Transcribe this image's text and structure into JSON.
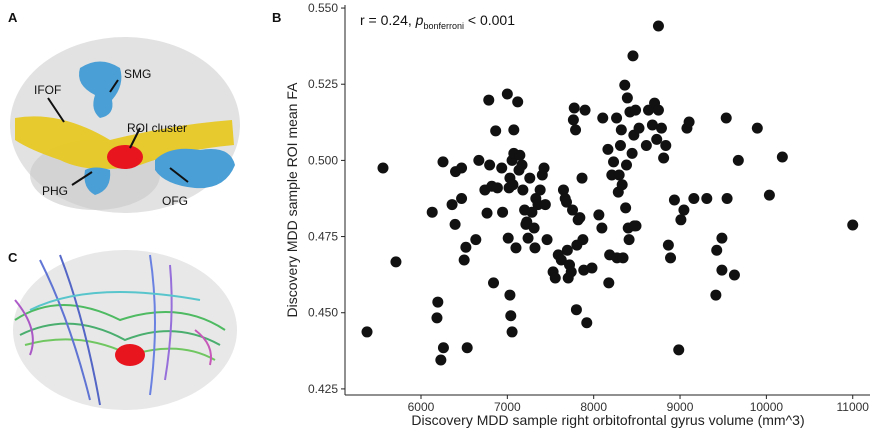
{
  "panels": {
    "A": {
      "label": "A",
      "annotations": [
        "SMG",
        "IFOF",
        "ROI cluster",
        "PHG",
        "OFG"
      ]
    },
    "C": {
      "label": "C"
    }
  },
  "chart_data": {
    "type": "scatter",
    "panel": "B",
    "annotation": [
      "r = 0.24, ",
      "p",
      "bonferroni",
      " < 0.001"
    ],
    "xlabel": "Discovery MDD sample right orbitofrontal gyrus volume (mm^3)",
    "ylabel": "Discovery MDD sample ROI mean FA",
    "color": "#111111",
    "xlim": [
      5120,
      11200
    ],
    "ylim": [
      0.423,
      0.551
    ],
    "xticks": [
      6000,
      7000,
      8000,
      9000,
      10000,
      11000
    ],
    "yticks": [
      0.425,
      {
        "value": 0.45,
        "label": "0.450"
      },
      0.475,
      {
        "value": 0.5,
        "label": "0.500"
      },
      0.525,
      {
        "value": 0.55,
        "label": "0.550"
      }
    ],
    "x": [
      5560,
      5375,
      5710,
      6130,
      6195,
      6260,
      6185,
      6230,
      6255,
      6360,
      6395,
      6400,
      6470,
      6470,
      6500,
      6520,
      6535,
      6635,
      6670,
      6740,
      6765,
      6785,
      6795,
      6820,
      6840,
      6865,
      6885,
      6935,
      6945,
      7000,
      7010,
      7020,
      7030,
      7030,
      7040,
      7055,
      7065,
      7055,
      7075,
      7075,
      7100,
      7120,
      7135,
      7145,
      7170,
      7180,
      7200,
      7215,
      7225,
      7240,
      7260,
      7285,
      7310,
      7320,
      7330,
      7355,
      7380,
      7405,
      7425,
      7440,
      7460,
      7530,
      7555,
      7590,
      7625,
      7650,
      7670,
      7685,
      7695,
      7705,
      7720,
      7740,
      7755,
      7765,
      7775,
      7790,
      7800,
      7805,
      7820,
      7840,
      7865,
      7875,
      7885,
      7900,
      7920,
      7980,
      8060,
      8095,
      8105,
      8165,
      8175,
      8185,
      8210,
      8230,
      8265,
      8270,
      8285,
      8295,
      8310,
      8320,
      8330,
      8340,
      8360,
      8370,
      8380,
      8390,
      8400,
      8410,
      8420,
      8445,
      8455,
      8465,
      8470,
      8485,
      8490,
      8525,
      8610,
      8635,
      8680,
      8705,
      8730,
      8750,
      8750,
      8785,
      8810,
      8835,
      8865,
      8890,
      8935,
      8985,
      9010,
      9045,
      9080,
      9105,
      9160,
      9310,
      9415,
      9425,
      9485,
      9485,
      9535,
      9545,
      9630,
      9675,
      9895,
      10035,
      10185,
      11000
    ],
    "y": [
      0.4975,
      0.4437,
      0.4667,
      0.483,
      0.4535,
      0.4385,
      0.4483,
      0.4345,
      0.4995,
      0.4855,
      0.479,
      0.4963,
      0.4975,
      0.4875,
      0.4673,
      0.4715,
      0.4385,
      0.474,
      0.5,
      0.4903,
      0.4827,
      0.5198,
      0.4985,
      0.4915,
      0.4598,
      0.5097,
      0.491,
      0.4975,
      0.483,
      0.5218,
      0.4745,
      0.491,
      0.4942,
      0.4558,
      0.449,
      0.4437,
      0.492,
      0.5,
      0.51,
      0.5023,
      0.4713,
      0.5192,
      0.4968,
      0.5017,
      0.4985,
      0.4903,
      0.4837,
      0.479,
      0.4798,
      0.4745,
      0.4942,
      0.483,
      0.4778,
      0.4713,
      0.4875,
      0.4855,
      0.4903,
      0.4952,
      0.4975,
      0.4855,
      0.474,
      0.4634,
      0.4614,
      0.469,
      0.4673,
      0.4903,
      0.4875,
      0.4863,
      0.4705,
      0.4614,
      0.4657,
      0.4634,
      0.4837,
      0.5133,
      0.5172,
      0.51,
      0.451,
      0.4722,
      0.4805,
      0.4812,
      0.4942,
      0.474,
      0.464,
      0.5165,
      0.4467,
      0.4647,
      0.4821,
      0.4778,
      0.5139,
      0.5036,
      0.4598,
      0.469,
      0.4952,
      0.4995,
      0.5139,
      0.468,
      0.4896,
      0.4952,
      0.5049,
      0.51,
      0.492,
      0.468,
      0.5247,
      0.4844,
      0.4985,
      0.5205,
      0.4778,
      0.474,
      0.5159,
      0.5023,
      0.5343,
      0.5083,
      0.4785,
      0.5165,
      0.4785,
      0.5106,
      0.5049,
      0.5165,
      0.5116,
      0.5188,
      0.5069,
      0.5165,
      0.5441,
      0.5106,
      0.5008,
      0.5049,
      0.4722,
      0.468,
      0.487,
      0.4378,
      0.4805,
      0.4837,
      0.5106,
      0.5126,
      0.4875,
      0.4875,
      0.4558,
      0.4705,
      0.4745,
      0.464,
      0.5139,
      0.4875,
      0.4624,
      0.5,
      0.5106,
      0.4886,
      0.5011,
      0.4788
    ]
  }
}
